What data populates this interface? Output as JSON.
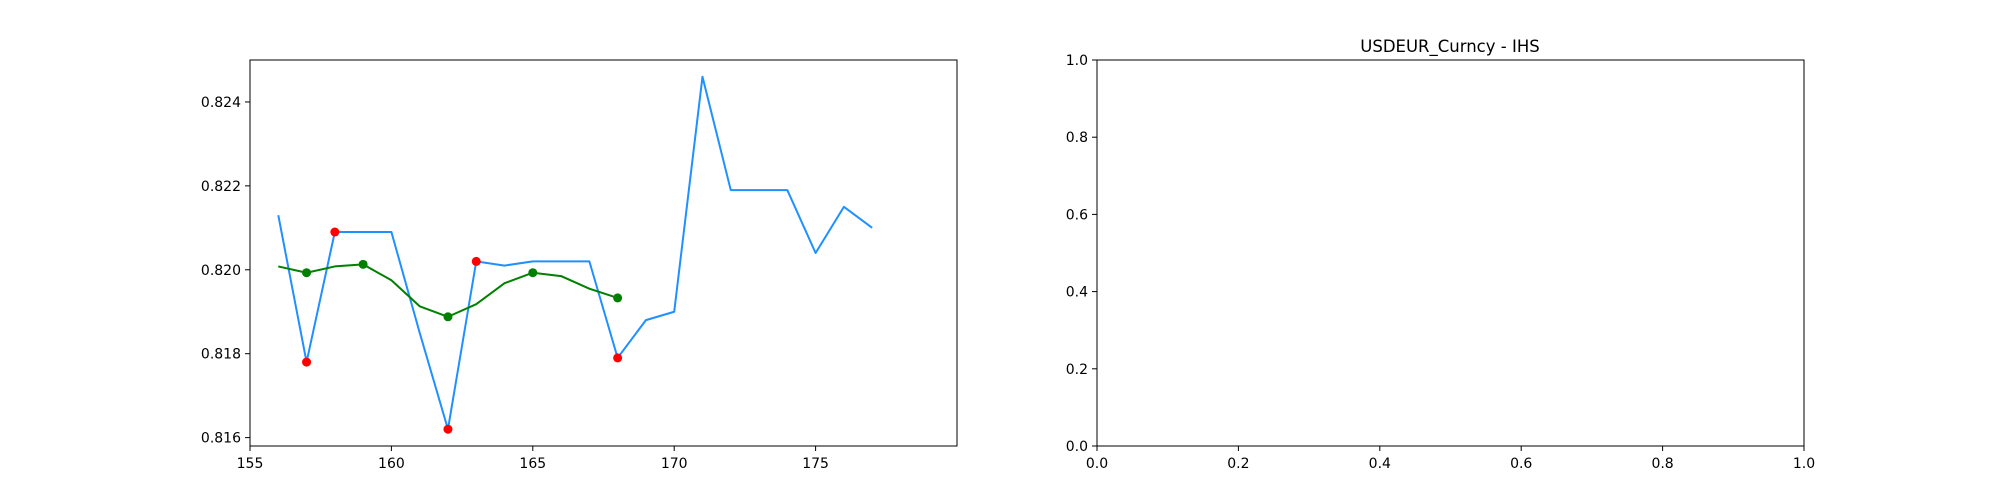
{
  "chart_data": [
    {
      "type": "line",
      "title": "",
      "xlabel": "",
      "ylabel": "",
      "xlim": [
        155,
        180
      ],
      "ylim": [
        0.8158,
        0.825
      ],
      "xticks": [
        155,
        160,
        165,
        170,
        175
      ],
      "yticks": [
        0.816,
        0.818,
        0.82,
        0.822,
        0.824
      ],
      "xtick_labels": [
        "155",
        "160",
        "165",
        "170",
        "175"
      ],
      "ytick_labels": [
        "0.816",
        "0.818",
        "0.820",
        "0.822",
        "0.824"
      ],
      "grid": false,
      "series": [
        {
          "color": "#1e90ff",
          "x": [
            156,
            157,
            158,
            159,
            160,
            161,
            162,
            163,
            164,
            165,
            166,
            167,
            168,
            169,
            170,
            171,
            172,
            173,
            174,
            175,
            176,
            177
          ],
          "y": [
            0.8213,
            0.8178,
            0.8209,
            0.8209,
            0.8209,
            0.8185,
            0.8162,
            0.8202,
            0.8201,
            0.8202,
            0.8202,
            0.8202,
            0.8179,
            0.8188,
            0.819,
            0.8246,
            0.8219,
            0.8219,
            0.8219,
            0.8204,
            0.8215,
            0.821
          ]
        },
        {
          "color": "#008000",
          "x": [
            156,
            157,
            158,
            159,
            160,
            161,
            162,
            163,
            164,
            165,
            166,
            167,
            168
          ],
          "y": [
            0.82008,
            0.81993,
            0.82008,
            0.82013,
            0.81975,
            0.81913,
            0.81888,
            0.81918,
            0.81968,
            0.81993,
            0.81985,
            0.81955,
            0.81933
          ]
        }
      ],
      "markers": [
        {
          "color": "#ff0000",
          "x": [
            157,
            158,
            162,
            163,
            168
          ],
          "y": [
            0.8178,
            0.8209,
            0.8162,
            0.8202,
            0.8179
          ]
        },
        {
          "color": "#008000",
          "x": [
            157,
            159,
            162,
            165,
            168
          ],
          "y": [
            0.81993,
            0.82013,
            0.81888,
            0.81993,
            0.81933
          ]
        }
      ]
    },
    {
      "type": "line",
      "title": "USDEUR_Curncy - IHS",
      "xlabel": "",
      "ylabel": "",
      "xlim": [
        0,
        1
      ],
      "ylim": [
        0,
        1
      ],
      "xticks": [
        0,
        0.2,
        0.4,
        0.6,
        0.8,
        1.0
      ],
      "yticks": [
        0,
        0.2,
        0.4,
        0.6,
        0.8,
        1.0
      ],
      "xtick_labels": [
        "0.0",
        "0.2",
        "0.4",
        "0.6",
        "0.8",
        "1.0"
      ],
      "ytick_labels": [
        "0.0",
        "0.2",
        "0.4",
        "0.6",
        "0.8",
        "1.0"
      ],
      "grid": false,
      "series": [],
      "markers": []
    }
  ]
}
